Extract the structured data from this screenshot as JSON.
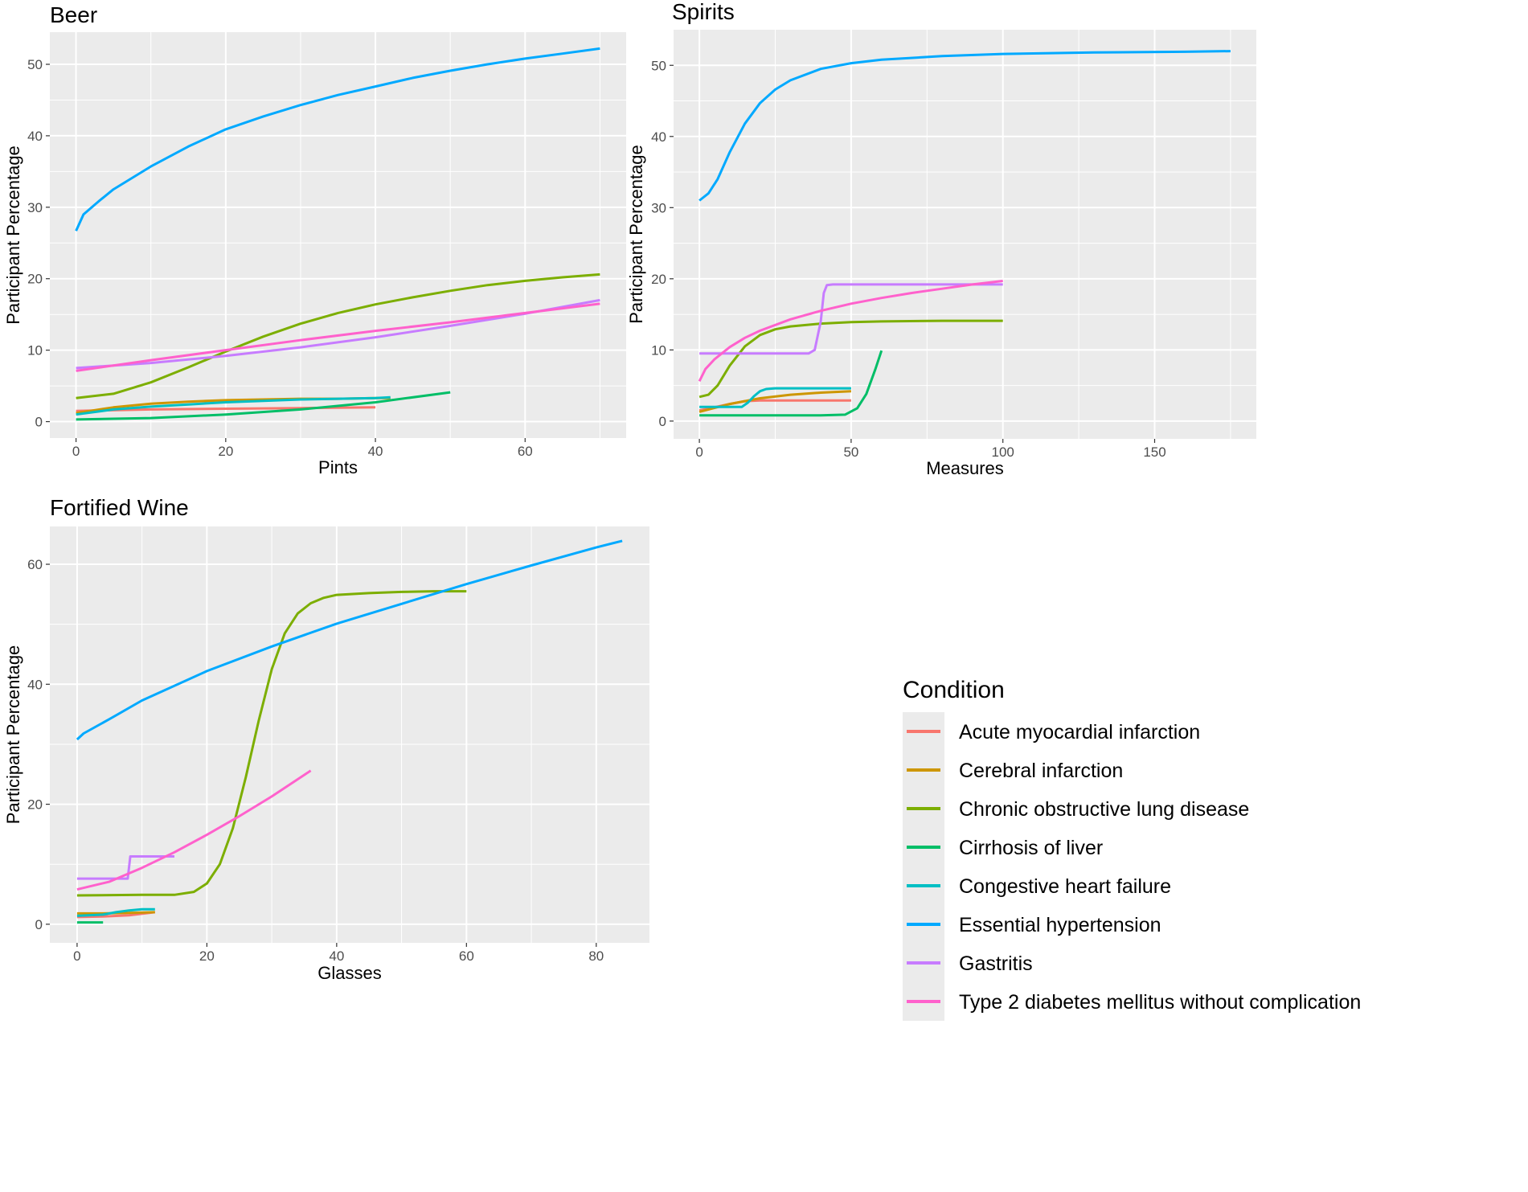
{
  "figure": {
    "legend": {
      "title": "Condition",
      "position": "bottom-right",
      "entries": [
        {
          "name": "Acute myocardial infarction",
          "color": "#F8766D"
        },
        {
          "name": "Cerebral infarction",
          "color": "#CD9600"
        },
        {
          "name": "Chronic obstructive lung disease",
          "color": "#7CAE00"
        },
        {
          "name": "Cirrhosis of liver",
          "color": "#00BE67"
        },
        {
          "name": "Congestive heart failure",
          "color": "#00BFC4"
        },
        {
          "name": "Essential hypertension",
          "color": "#00A9FF"
        },
        {
          "name": "Gastritis",
          "color": "#C77CFF"
        },
        {
          "name": "Type 2 diabetes mellitus without complication",
          "color": "#FF61CC"
        }
      ]
    }
  },
  "chart_data": [
    {
      "type": "line",
      "title": "Beer",
      "xlabel": "Pints",
      "ylabel": "Participant Percentage",
      "xlim": [
        -3.5,
        73.5
      ],
      "ylim": [
        -2.3,
        54.5
      ],
      "xticks": [
        0,
        20,
        40,
        60
      ],
      "yticks": [
        0,
        10,
        20,
        30,
        40,
        50
      ],
      "grid": true,
      "series": [
        {
          "name": "Acute myocardial infarction",
          "x": [
            0,
            10,
            20,
            30,
            40
          ],
          "y": [
            1.5,
            1.7,
            1.8,
            1.9,
            2.0
          ]
        },
        {
          "name": "Cerebral infarction",
          "x": [
            0,
            5,
            10,
            15,
            20,
            25,
            30,
            35,
            40,
            42
          ],
          "y": [
            1.2,
            2.0,
            2.5,
            2.8,
            3.0,
            3.1,
            3.2,
            3.2,
            3.3,
            3.3
          ]
        },
        {
          "name": "Chronic obstructive lung disease",
          "x": [
            0,
            5,
            10,
            15,
            20,
            25,
            30,
            35,
            40,
            45,
            50,
            55,
            60,
            65,
            70
          ],
          "y": [
            3.3,
            3.9,
            5.5,
            7.6,
            9.8,
            11.9,
            13.7,
            15.2,
            16.4,
            17.4,
            18.3,
            19.1,
            19.7,
            20.2,
            20.6
          ]
        },
        {
          "name": "Cirrhosis of liver",
          "x": [
            0,
            10,
            20,
            30,
            40,
            50
          ],
          "y": [
            0.3,
            0.5,
            1.0,
            1.7,
            2.7,
            4.1
          ]
        },
        {
          "name": "Congestive heart failure",
          "x": [
            0,
            5,
            10,
            15,
            20,
            25,
            30,
            35,
            40,
            42
          ],
          "y": [
            1.0,
            1.7,
            2.1,
            2.4,
            2.7,
            2.9,
            3.1,
            3.2,
            3.3,
            3.4
          ]
        },
        {
          "name": "Essential hypertension",
          "x": [
            0,
            1,
            3,
            5,
            10,
            15,
            20,
            25,
            30,
            35,
            40,
            45,
            50,
            55,
            60,
            65,
            70
          ],
          "y": [
            26.7,
            29.0,
            30.8,
            32.5,
            35.7,
            38.5,
            40.9,
            42.7,
            44.3,
            45.7,
            46.9,
            48.1,
            49.1,
            50.0,
            50.8,
            51.5,
            52.2
          ]
        },
        {
          "name": "Gastritis",
          "x": [
            0,
            10,
            20,
            30,
            40,
            50,
            60,
            70
          ],
          "y": [
            7.5,
            8.2,
            9.2,
            10.4,
            11.8,
            13.4,
            15.1,
            17.0
          ]
        },
        {
          "name": "Type 2 diabetes mellitus without complication",
          "x": [
            0,
            10,
            20,
            30,
            40,
            50,
            60,
            70
          ],
          "y": [
            7.1,
            8.6,
            10.0,
            11.4,
            12.7,
            13.9,
            15.2,
            16.5
          ]
        }
      ]
    },
    {
      "type": "line",
      "title": "Spirits",
      "xlabel": "Measures",
      "ylabel": "Participant Percentage",
      "xlim": [
        -8.5,
        183.5
      ],
      "ylim": [
        -2.5,
        55.0
      ],
      "xticks": [
        0,
        50,
        100,
        150
      ],
      "yticks": [
        0,
        10,
        20,
        30,
        40,
        50
      ],
      "grid": true,
      "series": [
        {
          "name": "Acute myocardial infarction",
          "x": [
            0,
            10,
            15,
            20,
            30,
            40,
            50
          ],
          "y": [
            1.5,
            2.4,
            2.8,
            2.9,
            2.9,
            2.9,
            2.9
          ]
        },
        {
          "name": "Cerebral infarction",
          "x": [
            0,
            10,
            20,
            30,
            40,
            50
          ],
          "y": [
            1.3,
            2.4,
            3.2,
            3.7,
            4.0,
            4.2
          ]
        },
        {
          "name": "Chronic obstructive lung disease",
          "x": [
            0,
            3,
            6,
            10,
            15,
            20,
            25,
            30,
            40,
            50,
            60,
            80,
            100
          ],
          "y": [
            3.4,
            3.7,
            5.0,
            7.8,
            10.5,
            12.1,
            12.9,
            13.3,
            13.7,
            13.9,
            14.0,
            14.1,
            14.1
          ]
        },
        {
          "name": "Cirrhosis of liver",
          "x": [
            0,
            20,
            40,
            48,
            52,
            55,
            58,
            60
          ],
          "y": [
            0.8,
            0.8,
            0.8,
            0.9,
            1.8,
            3.8,
            7.3,
            9.9
          ]
        },
        {
          "name": "Congestive heart failure",
          "x": [
            0,
            10,
            14,
            16,
            18,
            20,
            22,
            25,
            30,
            40,
            50
          ],
          "y": [
            2.0,
            2.0,
            2.0,
            2.6,
            3.5,
            4.2,
            4.5,
            4.6,
            4.6,
            4.6,
            4.6
          ]
        },
        {
          "name": "Essential hypertension",
          "x": [
            0,
            3,
            6,
            10,
            15,
            20,
            25,
            30,
            40,
            50,
            60,
            80,
            100,
            130,
            160,
            175
          ],
          "y": [
            31.0,
            32.0,
            34.0,
            37.8,
            41.8,
            44.7,
            46.6,
            47.9,
            49.5,
            50.3,
            50.8,
            51.3,
            51.6,
            51.8,
            51.9,
            52.0
          ]
        },
        {
          "name": "Gastritis",
          "x": [
            0,
            10,
            20,
            30,
            36,
            38,
            40,
            41,
            42,
            44,
            50,
            60,
            80,
            100
          ],
          "y": [
            9.5,
            9.5,
            9.5,
            9.5,
            9.5,
            10.0,
            14.0,
            18.0,
            19.1,
            19.2,
            19.2,
            19.2,
            19.2,
            19.2
          ]
        },
        {
          "name": "Type 2 diabetes mellitus without complication",
          "x": [
            0,
            2,
            5,
            10,
            15,
            20,
            30,
            40,
            50,
            60,
            70,
            80,
            90,
            100
          ],
          "y": [
            5.6,
            7.3,
            8.7,
            10.4,
            11.7,
            12.7,
            14.3,
            15.5,
            16.5,
            17.3,
            18.0,
            18.6,
            19.2,
            19.7
          ]
        }
      ]
    },
    {
      "type": "line",
      "title": "Fortified Wine",
      "xlabel": "Glasses",
      "ylabel": "Participant Percentage",
      "xlim": [
        -4.2,
        88.2
      ],
      "ylim": [
        -3.1,
        66.3
      ],
      "xticks": [
        0,
        20,
        40,
        60,
        80
      ],
      "yticks": [
        0,
        20,
        40,
        60
      ],
      "grid": true,
      "series": [
        {
          "name": "Acute myocardial infarction",
          "x": [
            0,
            4,
            8,
            12
          ],
          "y": [
            1.2,
            1.3,
            1.5,
            2.0
          ]
        },
        {
          "name": "Cerebral infarction",
          "x": [
            0,
            4,
            8,
            12
          ],
          "y": [
            1.8,
            1.8,
            1.9,
            2.0
          ]
        },
        {
          "name": "Chronic obstructive lung disease",
          "x": [
            0,
            10,
            15,
            18,
            20,
            22,
            24,
            26,
            28,
            30,
            32,
            34,
            36,
            38,
            40,
            45,
            50,
            55,
            60
          ],
          "y": [
            4.8,
            4.9,
            4.9,
            5.4,
            6.8,
            10.0,
            16.0,
            24.5,
            34.0,
            42.5,
            48.5,
            51.8,
            53.5,
            54.4,
            54.9,
            55.2,
            55.4,
            55.5,
            55.5
          ]
        },
        {
          "name": "Cirrhosis of liver",
          "x": [
            0,
            2,
            4
          ],
          "y": [
            0.3,
            0.3,
            0.3
          ]
        },
        {
          "name": "Congestive heart failure",
          "x": [
            0,
            4,
            6,
            8,
            10,
            12
          ],
          "y": [
            1.4,
            1.6,
            2.0,
            2.3,
            2.5,
            2.5
          ]
        },
        {
          "name": "Essential hypertension",
          "x": [
            0,
            1,
            5,
            10,
            20,
            30,
            40,
            50,
            60,
            70,
            80,
            84
          ],
          "y": [
            30.8,
            31.8,
            34.2,
            37.3,
            42.2,
            46.3,
            50.1,
            53.4,
            56.7,
            59.8,
            62.8,
            63.9
          ]
        },
        {
          "name": "Gastritis",
          "x": [
            0,
            7.8,
            8.2,
            9,
            12,
            15
          ],
          "y": [
            7.6,
            7.6,
            11.3,
            11.3,
            11.3,
            11.3
          ]
        },
        {
          "name": "Type 2 diabetes mellitus without complication",
          "x": [
            0,
            5,
            10,
            15,
            20,
            25,
            30,
            36
          ],
          "y": [
            5.8,
            7.1,
            9.4,
            12.0,
            14.9,
            18.0,
            21.3,
            25.6
          ]
        }
      ]
    }
  ]
}
